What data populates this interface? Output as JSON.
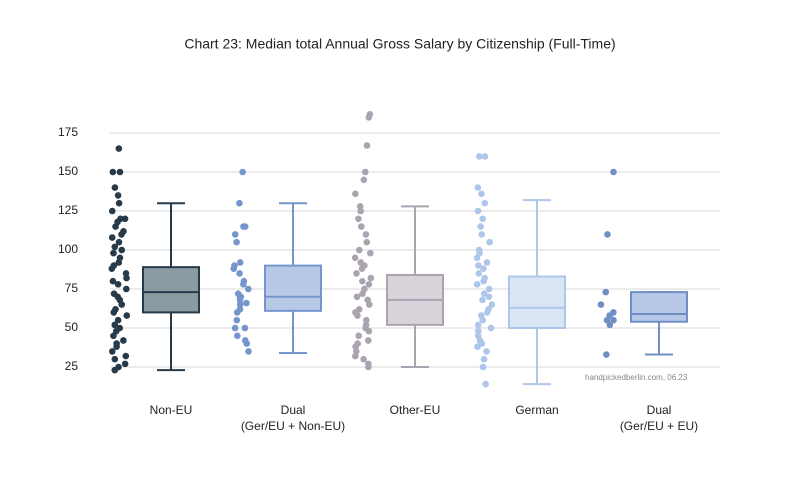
{
  "chart_data": {
    "type": "box",
    "title": "Chart 23: Median total Annual Gross Salary by Citizenship (Full-Time)",
    "note": "handpickedberlin.com, 06.23",
    "categories": [
      "Non-EU",
      "Dual\n(Ger/EU + Non-EU)",
      "Other-EU",
      "German",
      "Dual\n(Ger/EU + EU)"
    ],
    "ylim": [
      10,
      190
    ],
    "yticks": [
      25,
      50,
      75,
      100,
      125,
      150,
      175
    ],
    "grid": true,
    "boxes": [
      {
        "min": 23,
        "q1": 60,
        "median": 73,
        "q3": 89,
        "max": 130,
        "color": "#263a4a",
        "fill": "#8c9ba2",
        "points": [
          165,
          150,
          150,
          140,
          135,
          130,
          125,
          120,
          120,
          118,
          115,
          112,
          110,
          108,
          105,
          102,
          100,
          98,
          95,
          92,
          90,
          88,
          85,
          82,
          80,
          78,
          75,
          72,
          70,
          68,
          65,
          62,
          60,
          58,
          55,
          52,
          50,
          48,
          45,
          42,
          40,
          38,
          35,
          32,
          30,
          27,
          25,
          23
        ]
      },
      {
        "min": 34,
        "q1": 61,
        "median": 70,
        "q3": 90,
        "max": 130,
        "color": "#7596cc",
        "fill": "#b8c9e8",
        "points": [
          150,
          130,
          115,
          115,
          110,
          105,
          92,
          90,
          88,
          85,
          80,
          78,
          75,
          72,
          70,
          70,
          68,
          66,
          65,
          62,
          60,
          55,
          50,
          50,
          45,
          42,
          40,
          35
        ]
      },
      {
        "min": 25,
        "q1": 52,
        "median": 68,
        "q3": 84,
        "max": 128,
        "color": "#aca3b0",
        "fill": "#d8d2db",
        "points": [
          187,
          185,
          167,
          150,
          145,
          136,
          128,
          125,
          120,
          115,
          110,
          105,
          100,
          98,
          95,
          92,
          90,
          88,
          85,
          82,
          80,
          78,
          75,
          72,
          70,
          68,
          65,
          62,
          60,
          58,
          55,
          52,
          50,
          48,
          45,
          42,
          40,
          38,
          35,
          32,
          30,
          27,
          25
        ]
      },
      {
        "min": 14,
        "q1": 50,
        "median": 63,
        "q3": 83,
        "max": 132,
        "color": "#aec6ea",
        "fill": "#dae5f6",
        "points": [
          160,
          160,
          140,
          136,
          130,
          125,
          120,
          115,
          110,
          105,
          100,
          98,
          95,
          92,
          90,
          88,
          85,
          82,
          80,
          78,
          75,
          72,
          70,
          68,
          65,
          62,
          60,
          58,
          55,
          52,
          50,
          48,
          45,
          42,
          40,
          38,
          35,
          30,
          25,
          14
        ]
      },
      {
        "min": 33,
        "q1": 54,
        "median": 59,
        "q3": 73,
        "max": 73,
        "color": "#6f8fc5",
        "fill": "#b8c9e8",
        "points": [
          150,
          110,
          73,
          65,
          60,
          58,
          55,
          55,
          52,
          33
        ]
      }
    ]
  }
}
